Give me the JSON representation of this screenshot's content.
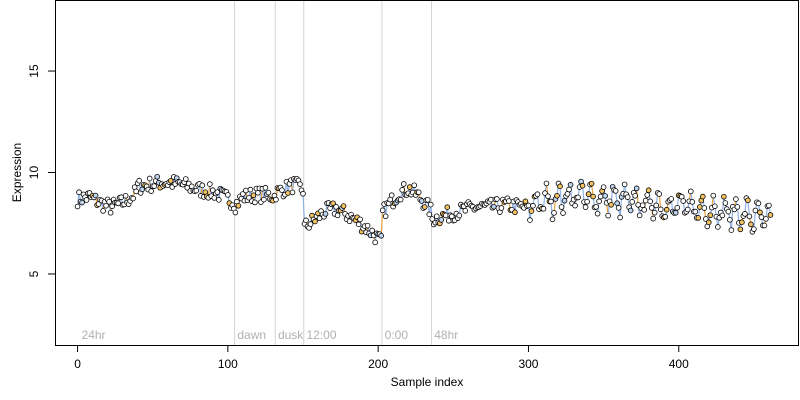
{
  "chart_data": {
    "type": "scatter",
    "title": "",
    "xlabel": "Sample index",
    "ylabel": "Expression",
    "xlim": [
      -15,
      480
    ],
    "ylim": [
      1.5,
      18.5
    ],
    "x_ticks": [
      0,
      100,
      200,
      300,
      400
    ],
    "y_ticks": [
      5,
      10,
      15
    ],
    "grid": false,
    "legend": "none",
    "colors": {
      "point_fill_primary": "#ffffff",
      "point_fill_alt_orange": "#f4c361",
      "point_fill_alt_blue": "#bcd4ee",
      "point_stroke": "#000000",
      "line_blue": "#8fb2e6",
      "line_orange": "#e8a23c",
      "divider": "#d4d4d4",
      "condition_label": "#b0b0b0"
    },
    "conditions": [
      {
        "label": "24hr",
        "start": 0
      },
      {
        "label": "dawn",
        "start": 105
      },
      {
        "label": "dusk",
        "start": 132
      },
      {
        "label": "12:00",
        "start": 151
      },
      {
        "label": "0:00",
        "start": 203
      },
      {
        "label": "48hr",
        "start": 236
      }
    ],
    "segments": [
      {
        "from": 0,
        "to": 40,
        "anchors": [
          [
            0,
            8.7
          ],
          [
            8,
            8.8
          ],
          [
            15,
            8.5
          ],
          [
            22,
            8.3
          ],
          [
            30,
            8.5
          ],
          [
            36,
            8.8
          ],
          [
            40,
            9.1
          ]
        ]
      },
      {
        "from": 40,
        "to": 105,
        "anchors": [
          [
            40,
            9.3
          ],
          [
            48,
            9.4
          ],
          [
            55,
            9.5
          ],
          [
            62,
            9.5
          ],
          [
            70,
            9.4
          ],
          [
            78,
            9.2
          ],
          [
            85,
            9.1
          ],
          [
            92,
            9.0
          ],
          [
            100,
            8.7
          ],
          [
            105,
            8.5
          ]
        ]
      },
      {
        "from": 105,
        "to": 132,
        "anchors": [
          [
            105,
            8.4
          ],
          [
            110,
            8.8
          ],
          [
            118,
            8.9
          ],
          [
            125,
            8.9
          ],
          [
            132,
            8.8
          ]
        ]
      },
      {
        "from": 132,
        "to": 151,
        "anchors": [
          [
            132,
            9.0
          ],
          [
            138,
            9.2
          ],
          [
            144,
            9.4
          ],
          [
            151,
            9.1
          ]
        ]
      },
      {
        "from": 151,
        "to": 203,
        "anchors": [
          [
            151,
            7.3
          ],
          [
            158,
            7.7
          ],
          [
            165,
            8.1
          ],
          [
            172,
            8.2
          ],
          [
            180,
            7.9
          ],
          [
            188,
            7.5
          ],
          [
            195,
            7.1
          ],
          [
            203,
            6.5
          ]
        ]
      },
      {
        "from": 203,
        "to": 236,
        "anchors": [
          [
            203,
            8.0
          ],
          [
            208,
            8.5
          ],
          [
            214,
            9.0
          ],
          [
            220,
            9.2
          ],
          [
            226,
            8.9
          ],
          [
            231,
            8.5
          ],
          [
            236,
            8.0
          ]
        ]
      },
      {
        "from": 236,
        "to": 300,
        "anchors": [
          [
            236,
            7.7
          ],
          [
            245,
            7.9
          ],
          [
            255,
            8.1
          ],
          [
            265,
            8.3
          ],
          [
            275,
            8.3
          ],
          [
            285,
            8.4
          ],
          [
            295,
            8.3
          ],
          [
            300,
            8.3
          ]
        ]
      },
      {
        "from": 300,
        "to": 462,
        "anchors": [
          [
            300,
            8.4
          ],
          [
            330,
            8.9
          ],
          [
            360,
            8.6
          ],
          [
            390,
            8.4
          ],
          [
            420,
            8.2
          ],
          [
            445,
            7.9
          ],
          [
            462,
            7.6
          ]
        ]
      }
    ],
    "n_points": 462
  }
}
